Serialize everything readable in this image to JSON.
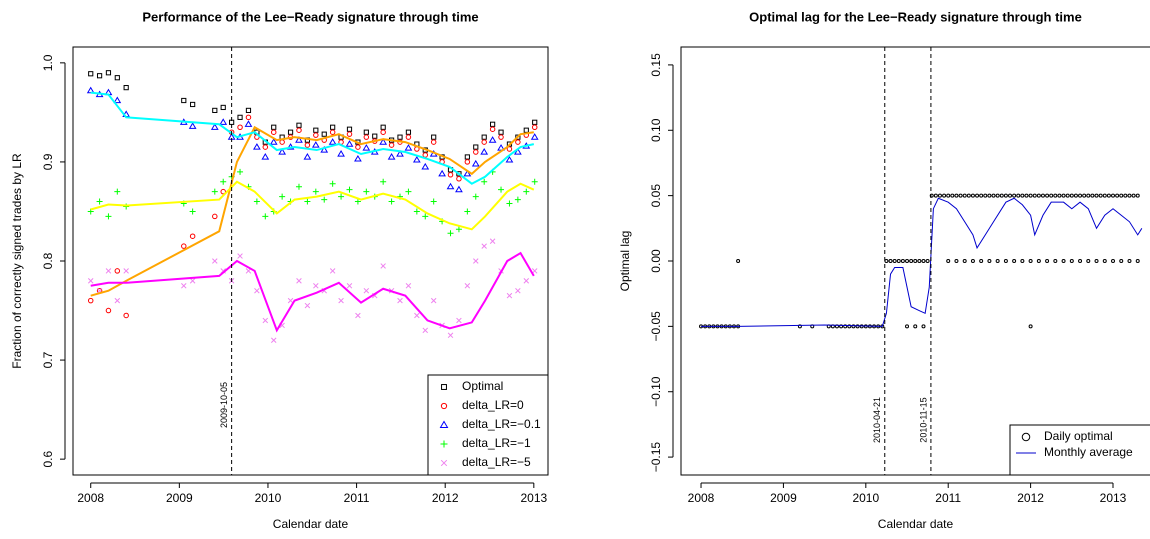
{
  "chart_data": [
    {
      "type": "scatter",
      "title": "Performance of the Lee−Ready signature through time",
      "x_label": "Calendar date",
      "y_label": "Fraction of correctly signed trades by LR",
      "xlim": [
        2007.8,
        2013.16
      ],
      "ylim": [
        0.584,
        1.016
      ],
      "xticks": [
        2008,
        2009,
        2010,
        2011,
        2012,
        2013
      ],
      "yticks": [
        0.6,
        0.7,
        0.8,
        0.9,
        {
          "value": 1.0,
          "label": "1.0"
        }
      ],
      "vlines": [
        {
          "value": 2009.59,
          "label": "2009-10-05"
        }
      ],
      "legend": "bottomright",
      "x": [
        2008.0,
        2008.1,
        2008.2,
        2008.3,
        2008.4,
        2009.05,
        2009.15,
        2009.4,
        2009.495,
        2009.59,
        2009.685,
        2009.78,
        2009.875,
        2009.97,
        2010.065,
        2010.16,
        2010.255,
        2010.35,
        2010.445,
        2010.54,
        2010.635,
        2010.73,
        2010.825,
        2010.92,
        2011.015,
        2011.11,
        2011.205,
        2011.3,
        2011.395,
        2011.49,
        2011.585,
        2011.68,
        2011.775,
        2011.87,
        2011.965,
        2012.06,
        2012.155,
        2012.25,
        2012.345,
        2012.44,
        2012.535,
        2012.63,
        2012.725,
        2012.82,
        2012.915,
        2013.01
      ],
      "smooth_x": [
        2008.0,
        2008.2,
        2008.4,
        2009.45,
        2009.65,
        2009.85,
        2010.1,
        2010.3,
        2010.55,
        2010.8,
        2011.05,
        2011.3,
        2011.55,
        2011.8,
        2012.05,
        2012.3,
        2012.45,
        2012.7,
        2012.85,
        2013.0
      ],
      "series": [
        {
          "name": "Optimal",
          "color": "#000000",
          "marker": "square",
          "values": [
            0.989,
            0.987,
            0.99,
            0.985,
            0.975,
            0.962,
            0.958,
            0.952,
            0.955,
            0.94,
            0.945,
            0.952,
            0.93,
            0.92,
            0.935,
            0.925,
            0.93,
            0.937,
            0.922,
            0.932,
            0.928,
            0.935,
            0.925,
            0.933,
            0.92,
            0.93,
            0.926,
            0.935,
            0.922,
            0.925,
            0.93,
            0.918,
            0.912,
            0.925,
            0.905,
            0.892,
            0.888,
            0.905,
            0.915,
            0.925,
            0.938,
            0.93,
            0.918,
            0.925,
            0.932,
            0.94
          ]
        },
        {
          "name": "delta_LR=0",
          "color": "#ff0000",
          "marker": "circle",
          "values": [
            0.76,
            0.77,
            0.75,
            0.79,
            0.745,
            0.815,
            0.825,
            0.845,
            0.87,
            0.93,
            0.935,
            0.945,
            0.925,
            0.915,
            0.93,
            0.92,
            0.925,
            0.932,
            0.917,
            0.927,
            0.922,
            0.93,
            0.92,
            0.928,
            0.915,
            0.925,
            0.921,
            0.93,
            0.917,
            0.92,
            0.925,
            0.913,
            0.907,
            0.92,
            0.9,
            0.887,
            0.883,
            0.9,
            0.91,
            0.92,
            0.933,
            0.925,
            0.913,
            0.92,
            0.927,
            0.935
          ],
          "smooth": {
            "color": "#ffa500",
            "values": [
              0.765,
              0.77,
              0.78,
              0.83,
              0.9,
              0.935,
              0.922,
              0.925,
              0.922,
              0.928,
              0.918,
              0.923,
              0.92,
              0.912,
              0.903,
              0.888,
              0.9,
              0.915,
              0.928,
              0.93
            ]
          }
        },
        {
          "name": "delta_LR=−0.1",
          "color": "#0000ff",
          "marker": "triangle",
          "values": [
            0.972,
            0.968,
            0.97,
            0.962,
            0.948,
            0.94,
            0.936,
            0.935,
            0.94,
            0.925,
            0.925,
            0.938,
            0.915,
            0.905,
            0.92,
            0.91,
            0.915,
            0.922,
            0.905,
            0.917,
            0.912,
            0.92,
            0.908,
            0.918,
            0.903,
            0.914,
            0.91,
            0.92,
            0.905,
            0.908,
            0.914,
            0.902,
            0.895,
            0.908,
            0.888,
            0.875,
            0.872,
            0.888,
            0.898,
            0.91,
            0.922,
            0.914,
            0.902,
            0.91,
            0.916,
            0.925
          ],
          "smooth": {
            "color": "#00ffff",
            "values": [
              0.97,
              0.968,
              0.945,
              0.938,
              0.925,
              0.93,
              0.912,
              0.915,
              0.912,
              0.918,
              0.908,
              0.913,
              0.91,
              0.903,
              0.895,
              0.878,
              0.885,
              0.905,
              0.915,
              0.918
            ]
          }
        },
        {
          "name": "delta_LR=−1",
          "color": "#00ff00",
          "marker": "plus",
          "values": [
            0.85,
            0.86,
            0.845,
            0.87,
            0.855,
            0.858,
            0.85,
            0.87,
            0.88,
            0.885,
            0.89,
            0.875,
            0.86,
            0.845,
            0.85,
            0.865,
            0.86,
            0.875,
            0.86,
            0.87,
            0.862,
            0.878,
            0.865,
            0.872,
            0.86,
            0.87,
            0.865,
            0.88,
            0.86,
            0.865,
            0.87,
            0.85,
            0.845,
            0.86,
            0.84,
            0.828,
            0.832,
            0.85,
            0.865,
            0.88,
            0.89,
            0.872,
            0.858,
            0.862,
            0.87,
            0.88
          ],
          "smooth": {
            "color": "#ffff00",
            "values": [
              0.852,
              0.857,
              0.856,
              0.862,
              0.88,
              0.87,
              0.848,
              0.862,
              0.865,
              0.87,
              0.862,
              0.868,
              0.862,
              0.848,
              0.838,
              0.832,
              0.845,
              0.87,
              0.878,
              0.872
            ]
          }
        },
        {
          "name": "delta_LR=−5",
          "color": "#ee82ee",
          "marker": "cross",
          "values": [
            0.78,
            0.77,
            0.79,
            0.76,
            0.79,
            0.775,
            0.78,
            0.8,
            0.79,
            0.78,
            0.805,
            0.79,
            0.77,
            0.74,
            0.72,
            0.735,
            0.76,
            0.78,
            0.755,
            0.775,
            0.77,
            0.79,
            0.76,
            0.775,
            0.745,
            0.77,
            0.765,
            0.795,
            0.77,
            0.76,
            0.775,
            0.745,
            0.73,
            0.76,
            0.735,
            0.725,
            0.74,
            0.775,
            0.8,
            0.815,
            0.82,
            0.79,
            0.765,
            0.77,
            0.78,
            0.79
          ],
          "smooth": {
            "color": "#ff00ff",
            "values": [
              0.775,
              0.778,
              0.778,
              0.785,
              0.8,
              0.79,
              0.73,
              0.76,
              0.768,
              0.778,
              0.758,
              0.772,
              0.765,
              0.74,
              0.732,
              0.738,
              0.76,
              0.8,
              0.808,
              0.785
            ]
          }
        }
      ]
    },
    {
      "type": "scatter",
      "title": "Optimal lag for the Lee−Ready signature through time",
      "x_label": "Calendar date",
      "y_label": "Optimal lag",
      "xlim": [
        2007.757,
        2013.449
      ],
      "ylim": [
        -0.1637,
        0.1637
      ],
      "xticks": [
        2008,
        2009,
        2010,
        2011,
        2012,
        2013
      ],
      "yticks": [
        {
          "value": -0.15,
          "label": "−0.15"
        },
        {
          "value": -0.1,
          "label": "−0.10"
        },
        {
          "value": -0.05,
          "label": "−0.05"
        },
        {
          "value": 0,
          "label": "0.00"
        },
        0.05,
        {
          "value": 0.1,
          "label": "0.10"
        },
        0.15
      ],
      "vlines": [
        {
          "value": 2010.23,
          "label": "2010-04-21"
        },
        {
          "value": 2010.79,
          "label": "2010-11-15"
        }
      ],
      "legend": "bottomright",
      "series": [
        {
          "name": "Daily optimal",
          "color": "#000000",
          "marker": "circle",
          "x": [
            2008.0,
            2008.05,
            2008.1,
            2008.15,
            2008.2,
            2008.25,
            2008.3,
            2008.35,
            2008.4,
            2008.45,
            2009.2,
            2009.35,
            2009.55,
            2009.6,
            2009.65,
            2009.7,
            2009.75,
            2009.8,
            2009.85,
            2009.9,
            2009.95,
            2010.0,
            2010.05,
            2010.1,
            2010.15,
            2010.2,
            2010.5,
            2010.6,
            2010.7,
            2012.0,
            2008.45,
            2010.25,
            2010.3,
            2010.35,
            2010.4,
            2010.45,
            2010.5,
            2010.55,
            2010.6,
            2010.65,
            2010.7,
            2010.75,
            2011.0,
            2011.1,
            2011.2,
            2011.3,
            2011.4,
            2011.5,
            2011.6,
            2011.7,
            2011.8,
            2011.9,
            2012.0,
            2012.1,
            2012.2,
            2012.3,
            2012.4,
            2012.5,
            2012.6,
            2012.7,
            2012.8,
            2012.9,
            2013.0,
            2013.1,
            2013.2,
            2013.3,
            2010.8,
            2010.85,
            2010.9,
            2010.95,
            2011.0,
            2011.05,
            2011.1,
            2011.15,
            2011.2,
            2011.25,
            2011.3,
            2011.35,
            2011.4,
            2011.45,
            2011.5,
            2011.55,
            2011.6,
            2011.65,
            2011.7,
            2011.75,
            2011.8,
            2011.85,
            2011.9,
            2011.95,
            2012.0,
            2012.05,
            2012.1,
            2012.15,
            2012.2,
            2012.25,
            2012.3,
            2012.35,
            2012.4,
            2012.45,
            2012.5,
            2012.55,
            2012.6,
            2012.65,
            2012.7,
            2012.75,
            2012.8,
            2012.85,
            2012.9,
            2012.95,
            2013.0,
            2013.05,
            2013.1,
            2013.15,
            2013.2,
            2013.25,
            2013.3
          ],
          "values": [
            -0.05,
            -0.05,
            -0.05,
            -0.05,
            -0.05,
            -0.05,
            -0.05,
            -0.05,
            -0.05,
            -0.05,
            -0.05,
            -0.05,
            -0.05,
            -0.05,
            -0.05,
            -0.05,
            -0.05,
            -0.05,
            -0.05,
            -0.05,
            -0.05,
            -0.05,
            -0.05,
            -0.05,
            -0.05,
            -0.05,
            -0.05,
            -0.05,
            -0.05,
            -0.05,
            0,
            0,
            0,
            0,
            0,
            0,
            0,
            0,
            0,
            0,
            0,
            0,
            0,
            0,
            0,
            0,
            0,
            0,
            0,
            0,
            0,
            0,
            0,
            0,
            0,
            0,
            0,
            0,
            0,
            0,
            0,
            0,
            0,
            0,
            0,
            0,
            0.05,
            0.05,
            0.05,
            0.05,
            0.05,
            0.05,
            0.05,
            0.05,
            0.05,
            0.05,
            0.05,
            0.05,
            0.05,
            0.05,
            0.05,
            0.05,
            0.05,
            0.05,
            0.05,
            0.05,
            0.05,
            0.05,
            0.05,
            0.05,
            0.05,
            0.05,
            0.05,
            0.05,
            0.05,
            0.05,
            0.05,
            0.05,
            0.05,
            0.05,
            0.05,
            0.05,
            0.05,
            0.05,
            0.05,
            0.05,
            0.05,
            0.05,
            0.05,
            0.05,
            0.05,
            0.05,
            0.05,
            0.05,
            0.05,
            0.05,
            0.05
          ]
        },
        {
          "name": "Monthly average",
          "color": "#0000cd",
          "marker": "line",
          "x": [
            2008.0,
            2008.45,
            2009.5,
            2010.2,
            2010.25,
            2010.3,
            2010.35,
            2010.45,
            2010.5,
            2010.55,
            2010.65,
            2010.72,
            2010.77,
            2010.82,
            2010.88,
            2011.0,
            2011.1,
            2011.2,
            2011.3,
            2011.35,
            2011.45,
            2011.55,
            2011.7,
            2011.8,
            2011.9,
            2012.0,
            2012.05,
            2012.15,
            2012.25,
            2012.4,
            2012.5,
            2012.6,
            2012.7,
            2012.8,
            2012.9,
            2013.0,
            2013.1,
            2013.2,
            2013.3,
            2013.35
          ],
          "values": [
            -0.05,
            -0.05,
            -0.049,
            -0.05,
            -0.04,
            -0.01,
            -0.005,
            -0.005,
            -0.02,
            -0.035,
            -0.038,
            -0.04,
            -0.02,
            0.04,
            0.048,
            0.045,
            0.04,
            0.03,
            0.02,
            0.01,
            0.02,
            0.03,
            0.045,
            0.048,
            0.043,
            0.035,
            0.02,
            0.035,
            0.045,
            0.045,
            0.04,
            0.045,
            0.04,
            0.025,
            0.035,
            0.04,
            0.035,
            0.03,
            0.02,
            0.025
          ]
        }
      ]
    }
  ]
}
